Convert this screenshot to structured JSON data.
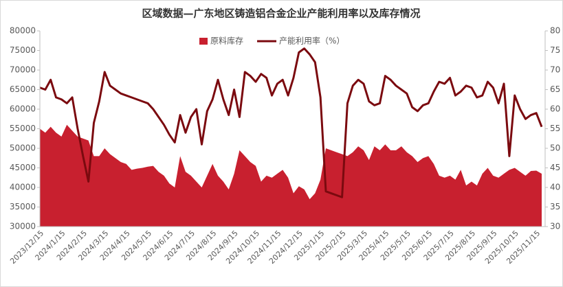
{
  "chart_data": {
    "type": "area+line",
    "title": "区域数据—广东地区铸造铝合金企业产能利用率以及库存情况",
    "categories": [
      "2023/12/15",
      null,
      null,
      null,
      "2024/1/15",
      null,
      null,
      null,
      "2024/2/15",
      null,
      null,
      null,
      "2024/3/15",
      null,
      null,
      null,
      "2024/4/15",
      null,
      null,
      null,
      "2024/5/15",
      null,
      null,
      null,
      "2024/6/15",
      null,
      null,
      null,
      "2024/7/15",
      null,
      null,
      null,
      "2024/8/15",
      null,
      null,
      null,
      "2024/9/15",
      null,
      null,
      null,
      "2024/10/15",
      null,
      null,
      null,
      "2024/11/15",
      null,
      null,
      null,
      "2024/12/15",
      null,
      null,
      null,
      "2025/1/15",
      null,
      null,
      null,
      "2025/2/15",
      null,
      null,
      null,
      "2025/3/15",
      null,
      null,
      null,
      "2025/4/15",
      null,
      null,
      null,
      "2025/5/15",
      null,
      null,
      null,
      "2025/6/15",
      null,
      null,
      null,
      "2025/7/15",
      null,
      null,
      null,
      "2025/8/15",
      null,
      null,
      null,
      "2025/9/15",
      null,
      null,
      null,
      "2025/10/15",
      null,
      null,
      null,
      "2025/11/15",
      null
    ],
    "series": [
      {
        "name": "原料库存",
        "type": "area",
        "color": "#c8202f",
        "values": [
          55000,
          54000,
          55500,
          54000,
          53000,
          56000,
          54500,
          53000,
          52500,
          52000,
          48000,
          48000,
          50000,
          48500,
          47500,
          46500,
          46000,
          44500,
          44800,
          45000,
          45300,
          45500,
          44000,
          43000,
          41000,
          40000,
          48000,
          44000,
          43000,
          41500,
          40000,
          43000,
          46000,
          43000,
          41500,
          39500,
          43500,
          49500,
          48000,
          46500,
          45500,
          41500,
          43000,
          42500,
          43500,
          44500,
          42500,
          38500,
          40300,
          39500,
          37000,
          38500,
          42000,
          50000,
          49500,
          49000,
          48500,
          48000,
          49000,
          50500,
          49500,
          47000,
          50500,
          49500,
          51000,
          49500,
          49500,
          50500,
          49000,
          48000,
          46500,
          47500,
          48000,
          46000,
          43000,
          42500,
          43000,
          42000,
          44500,
          40500,
          41500,
          40500,
          43500,
          45000,
          43000,
          42500,
          43500,
          44500,
          45000,
          44000,
          43000,
          44200,
          44300,
          43500
        ]
      },
      {
        "name": "产能利用率（%）",
        "type": "line",
        "axis": "y2",
        "color": "#7b0a0f",
        "values": [
          65.5,
          65,
          67.5,
          63,
          62.5,
          61.5,
          63,
          55,
          48,
          41.5,
          56.5,
          62,
          69.5,
          66,
          65,
          64,
          63.5,
          63,
          62.5,
          62,
          61.5,
          60,
          58,
          56,
          53.5,
          51.5,
          58.5,
          54,
          58,
          60,
          51,
          59.5,
          62.5,
          67.5,
          62.5,
          58.5,
          65,
          58,
          69.5,
          68.5,
          67,
          69,
          68,
          63.5,
          66.5,
          67.5,
          63.5,
          68,
          74.5,
          75.5,
          74,
          72,
          63,
          39,
          38.5,
          38,
          37.5,
          61.5,
          66,
          67.5,
          66.5,
          62,
          61,
          61.5,
          68.5,
          67.5,
          66,
          65,
          64,
          60.5,
          59.5,
          61,
          61.5,
          64.5,
          67,
          66.5,
          68,
          63.5,
          64.5,
          66,
          65.5,
          63,
          63.5,
          67,
          65.5,
          61.5,
          66.5,
          48,
          63.5,
          60,
          57.5,
          58.5,
          59,
          55.5
        ]
      }
    ],
    "ylim": [
      30000,
      80000
    ],
    "yticks": [
      30000,
      35000,
      40000,
      45000,
      50000,
      55000,
      60000,
      65000,
      70000,
      75000,
      80000
    ],
    "y2lim": [
      30,
      80
    ],
    "y2ticks": [
      30,
      35,
      40,
      45,
      50,
      55,
      60,
      65,
      70,
      75,
      80
    ],
    "legend": "top"
  }
}
